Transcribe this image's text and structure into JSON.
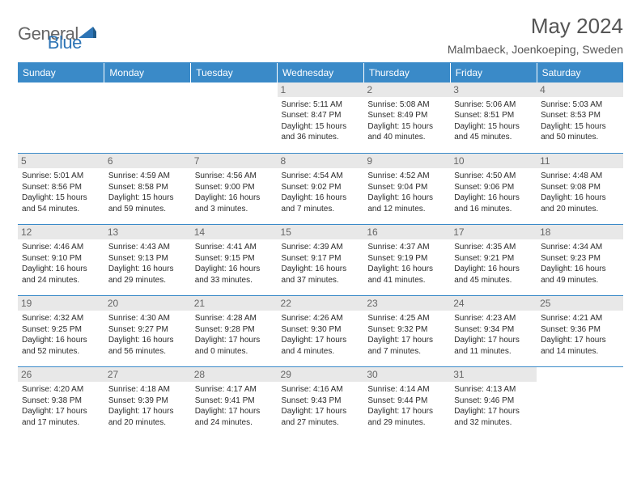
{
  "logo": {
    "part1": "General",
    "part2": "Blue"
  },
  "title": "May 2024",
  "location": "Malmbaeck, Joenkoeping, Sweden",
  "colors": {
    "header_bg": "#3a8ac8",
    "header_text": "#ffffff",
    "daynum_bg": "#e8e8e8",
    "daynum_text": "#666666",
    "border": "#3a8ac8",
    "body_text": "#2b2b2b",
    "title_text": "#555555",
    "logo_gray": "#666666",
    "logo_blue": "#2e75b6",
    "page_bg": "#ffffff"
  },
  "typography": {
    "title_fontsize": 26,
    "location_fontsize": 14,
    "dayhead_fontsize": 12,
    "daynum_fontsize": 12,
    "detail_fontsize": 10,
    "logo_fontsize": 22
  },
  "day_headers": [
    "Sunday",
    "Monday",
    "Tuesday",
    "Wednesday",
    "Thursday",
    "Friday",
    "Saturday"
  ],
  "weeks": [
    [
      {
        "n": "",
        "sr": "",
        "ss": "",
        "dl": ""
      },
      {
        "n": "",
        "sr": "",
        "ss": "",
        "dl": ""
      },
      {
        "n": "",
        "sr": "",
        "ss": "",
        "dl": ""
      },
      {
        "n": "1",
        "sr": "Sunrise: 5:11 AM",
        "ss": "Sunset: 8:47 PM",
        "dl": "Daylight: 15 hours and 36 minutes."
      },
      {
        "n": "2",
        "sr": "Sunrise: 5:08 AM",
        "ss": "Sunset: 8:49 PM",
        "dl": "Daylight: 15 hours and 40 minutes."
      },
      {
        "n": "3",
        "sr": "Sunrise: 5:06 AM",
        "ss": "Sunset: 8:51 PM",
        "dl": "Daylight: 15 hours and 45 minutes."
      },
      {
        "n": "4",
        "sr": "Sunrise: 5:03 AM",
        "ss": "Sunset: 8:53 PM",
        "dl": "Daylight: 15 hours and 50 minutes."
      }
    ],
    [
      {
        "n": "5",
        "sr": "Sunrise: 5:01 AM",
        "ss": "Sunset: 8:56 PM",
        "dl": "Daylight: 15 hours and 54 minutes."
      },
      {
        "n": "6",
        "sr": "Sunrise: 4:59 AM",
        "ss": "Sunset: 8:58 PM",
        "dl": "Daylight: 15 hours and 59 minutes."
      },
      {
        "n": "7",
        "sr": "Sunrise: 4:56 AM",
        "ss": "Sunset: 9:00 PM",
        "dl": "Daylight: 16 hours and 3 minutes."
      },
      {
        "n": "8",
        "sr": "Sunrise: 4:54 AM",
        "ss": "Sunset: 9:02 PM",
        "dl": "Daylight: 16 hours and 7 minutes."
      },
      {
        "n": "9",
        "sr": "Sunrise: 4:52 AM",
        "ss": "Sunset: 9:04 PM",
        "dl": "Daylight: 16 hours and 12 minutes."
      },
      {
        "n": "10",
        "sr": "Sunrise: 4:50 AM",
        "ss": "Sunset: 9:06 PM",
        "dl": "Daylight: 16 hours and 16 minutes."
      },
      {
        "n": "11",
        "sr": "Sunrise: 4:48 AM",
        "ss": "Sunset: 9:08 PM",
        "dl": "Daylight: 16 hours and 20 minutes."
      }
    ],
    [
      {
        "n": "12",
        "sr": "Sunrise: 4:46 AM",
        "ss": "Sunset: 9:10 PM",
        "dl": "Daylight: 16 hours and 24 minutes."
      },
      {
        "n": "13",
        "sr": "Sunrise: 4:43 AM",
        "ss": "Sunset: 9:13 PM",
        "dl": "Daylight: 16 hours and 29 minutes."
      },
      {
        "n": "14",
        "sr": "Sunrise: 4:41 AM",
        "ss": "Sunset: 9:15 PM",
        "dl": "Daylight: 16 hours and 33 minutes."
      },
      {
        "n": "15",
        "sr": "Sunrise: 4:39 AM",
        "ss": "Sunset: 9:17 PM",
        "dl": "Daylight: 16 hours and 37 minutes."
      },
      {
        "n": "16",
        "sr": "Sunrise: 4:37 AM",
        "ss": "Sunset: 9:19 PM",
        "dl": "Daylight: 16 hours and 41 minutes."
      },
      {
        "n": "17",
        "sr": "Sunrise: 4:35 AM",
        "ss": "Sunset: 9:21 PM",
        "dl": "Daylight: 16 hours and 45 minutes."
      },
      {
        "n": "18",
        "sr": "Sunrise: 4:34 AM",
        "ss": "Sunset: 9:23 PM",
        "dl": "Daylight: 16 hours and 49 minutes."
      }
    ],
    [
      {
        "n": "19",
        "sr": "Sunrise: 4:32 AM",
        "ss": "Sunset: 9:25 PM",
        "dl": "Daylight: 16 hours and 52 minutes."
      },
      {
        "n": "20",
        "sr": "Sunrise: 4:30 AM",
        "ss": "Sunset: 9:27 PM",
        "dl": "Daylight: 16 hours and 56 minutes."
      },
      {
        "n": "21",
        "sr": "Sunrise: 4:28 AM",
        "ss": "Sunset: 9:28 PM",
        "dl": "Daylight: 17 hours and 0 minutes."
      },
      {
        "n": "22",
        "sr": "Sunrise: 4:26 AM",
        "ss": "Sunset: 9:30 PM",
        "dl": "Daylight: 17 hours and 4 minutes."
      },
      {
        "n": "23",
        "sr": "Sunrise: 4:25 AM",
        "ss": "Sunset: 9:32 PM",
        "dl": "Daylight: 17 hours and 7 minutes."
      },
      {
        "n": "24",
        "sr": "Sunrise: 4:23 AM",
        "ss": "Sunset: 9:34 PM",
        "dl": "Daylight: 17 hours and 11 minutes."
      },
      {
        "n": "25",
        "sr": "Sunrise: 4:21 AM",
        "ss": "Sunset: 9:36 PM",
        "dl": "Daylight: 17 hours and 14 minutes."
      }
    ],
    [
      {
        "n": "26",
        "sr": "Sunrise: 4:20 AM",
        "ss": "Sunset: 9:38 PM",
        "dl": "Daylight: 17 hours and 17 minutes."
      },
      {
        "n": "27",
        "sr": "Sunrise: 4:18 AM",
        "ss": "Sunset: 9:39 PM",
        "dl": "Daylight: 17 hours and 20 minutes."
      },
      {
        "n": "28",
        "sr": "Sunrise: 4:17 AM",
        "ss": "Sunset: 9:41 PM",
        "dl": "Daylight: 17 hours and 24 minutes."
      },
      {
        "n": "29",
        "sr": "Sunrise: 4:16 AM",
        "ss": "Sunset: 9:43 PM",
        "dl": "Daylight: 17 hours and 27 minutes."
      },
      {
        "n": "30",
        "sr": "Sunrise: 4:14 AM",
        "ss": "Sunset: 9:44 PM",
        "dl": "Daylight: 17 hours and 29 minutes."
      },
      {
        "n": "31",
        "sr": "Sunrise: 4:13 AM",
        "ss": "Sunset: 9:46 PM",
        "dl": "Daylight: 17 hours and 32 minutes."
      },
      {
        "n": "",
        "sr": "",
        "ss": "",
        "dl": ""
      }
    ]
  ]
}
